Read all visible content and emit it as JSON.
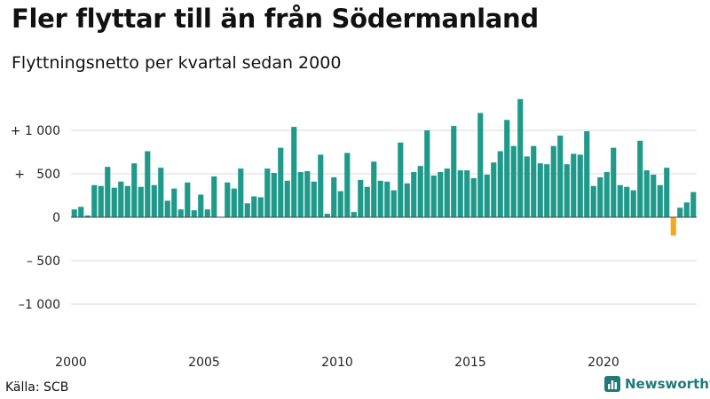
{
  "title": "Fler flyttar till än från Södermanland",
  "subtitle": "Flyttningsnetto per kvartal sedan 2000",
  "source": "Källa: SCB",
  "brand": {
    "name": "Newsworthy",
    "icon": "bar-chart-icon"
  },
  "chart_data": {
    "type": "bar",
    "title": "Fler flyttar till än från Södermanland",
    "subtitle": "Flyttningsnetto per kvartal sedan 2000",
    "colors": {
      "positive": "#1f9a8a",
      "negative": "#f5a623",
      "grid": "#d9d9d9",
      "zero_line": "#444444"
    },
    "ylim": [
      -1400,
      1400
    ],
    "y_ticks": [
      {
        "value": 1000,
        "label": "+ 1 000"
      },
      {
        "value": 500,
        "label": "+   500"
      },
      {
        "value": 0,
        "label": "0"
      },
      {
        "value": -500,
        "label": "– 500"
      },
      {
        "value": -1000,
        "label": "–1 000"
      }
    ],
    "x_ticks": [
      {
        "index": 0,
        "label": "2000"
      },
      {
        "index": 20,
        "label": "2005"
      },
      {
        "index": 40,
        "label": "2010"
      },
      {
        "index": 60,
        "label": "2015"
      },
      {
        "index": 80,
        "label": "2020"
      }
    ],
    "period_start": "2000 Q1",
    "values": [
      90,
      120,
      20,
      370,
      360,
      580,
      340,
      410,
      360,
      620,
      350,
      760,
      370,
      570,
      190,
      330,
      90,
      400,
      80,
      260,
      90,
      470,
      0,
      400,
      330,
      560,
      160,
      240,
      230,
      560,
      510,
      800,
      420,
      1040,
      520,
      530,
      410,
      720,
      40,
      460,
      300,
      740,
      60,
      430,
      350,
      640,
      420,
      410,
      310,
      860,
      390,
      520,
      590,
      1000,
      480,
      520,
      560,
      1050,
      540,
      540,
      450,
      1200,
      490,
      630,
      760,
      1120,
      820,
      1360,
      700,
      820,
      620,
      610,
      820,
      940,
      610,
      730,
      720,
      990,
      360,
      460,
      520,
      800,
      370,
      350,
      310,
      880,
      540,
      490,
      370,
      570,
      -210,
      110,
      170,
      290
    ]
  }
}
